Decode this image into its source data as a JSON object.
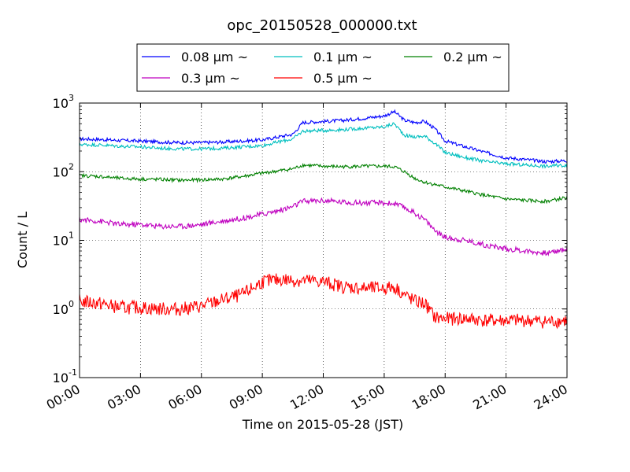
{
  "chart_data": {
    "type": "line",
    "title": "opc_20150528_000000.txt",
    "xlabel": "Time on 2015-05-28 (JST)",
    "ylabel": "Count / L",
    "yscale": "log",
    "xlim": [
      "2015-05-28 00:00",
      "2015-05-29 00:00"
    ],
    "ylim": [
      0.1,
      1000
    ],
    "grid": true,
    "legend_position": "top-center",
    "x_ticks": [
      "00:00",
      "03:00",
      "06:00",
      "09:00",
      "12:00",
      "15:00",
      "18:00",
      "21:00",
      "24:00"
    ],
    "y_ticks": [
      {
        "base": "10",
        "exp": "-1"
      },
      {
        "base": "10",
        "exp": "0"
      },
      {
        "base": "10",
        "exp": "1"
      },
      {
        "base": "10",
        "exp": "2"
      },
      {
        "base": "10",
        "exp": "3"
      }
    ],
    "x": [
      "00:00",
      "01:00",
      "02:00",
      "03:00",
      "04:00",
      "05:00",
      "06:00",
      "07:00",
      "08:00",
      "09:00",
      "10:00",
      "10:30",
      "11:00",
      "12:00",
      "13:00",
      "14:00",
      "15:00",
      "15:30",
      "16:00",
      "16:30",
      "17:00",
      "17:30",
      "18:00",
      "19:00",
      "20:00",
      "21:00",
      "22:00",
      "23:00",
      "24:00"
    ],
    "series": [
      {
        "name": "0.08 μm ~",
        "color": "#0000ff",
        "values": [
          300,
          295,
          285,
          280,
          270,
          265,
          265,
          270,
          280,
          290,
          330,
          350,
          520,
          540,
          560,
          600,
          650,
          750,
          560,
          520,
          540,
          420,
          280,
          230,
          190,
          160,
          150,
          140,
          145
        ]
      },
      {
        "name": "0.1 μm ~",
        "color": "#00bfbf",
        "values": [
          250,
          245,
          235,
          230,
          220,
          215,
          215,
          220,
          230,
          240,
          280,
          300,
          390,
          400,
          410,
          430,
          450,
          500,
          340,
          320,
          330,
          260,
          190,
          160,
          140,
          130,
          125,
          120,
          125
        ]
      },
      {
        "name": "0.2 μm ~",
        "color": "#008000",
        "values": [
          88,
          85,
          80,
          78,
          77,
          75,
          76,
          78,
          85,
          95,
          105,
          110,
          125,
          120,
          118,
          120,
          120,
          118,
          100,
          80,
          70,
          65,
          60,
          52,
          45,
          40,
          38,
          37,
          42
        ]
      },
      {
        "name": "0.3 μm ~",
        "color": "#bf00bf",
        "values": [
          20,
          19,
          17,
          17,
          16,
          16,
          17,
          19,
          21,
          24,
          28,
          31,
          37,
          38,
          36,
          35,
          35,
          34,
          30,
          25,
          20,
          14,
          11,
          10,
          8.5,
          7.5,
          7,
          6.5,
          7.5
        ]
      },
      {
        "name": "0.5 μm ~",
        "color": "#ff0000",
        "values": [
          1.3,
          1.2,
          1.05,
          1.05,
          1.0,
          1.0,
          1.1,
          1.35,
          1.6,
          2.5,
          2.7,
          2.6,
          2.6,
          2.5,
          2.1,
          2.0,
          2.0,
          2.1,
          1.6,
          1.3,
          1.2,
          0.75,
          0.72,
          0.72,
          0.68,
          0.68,
          0.68,
          0.65,
          0.68
        ]
      }
    ]
  }
}
